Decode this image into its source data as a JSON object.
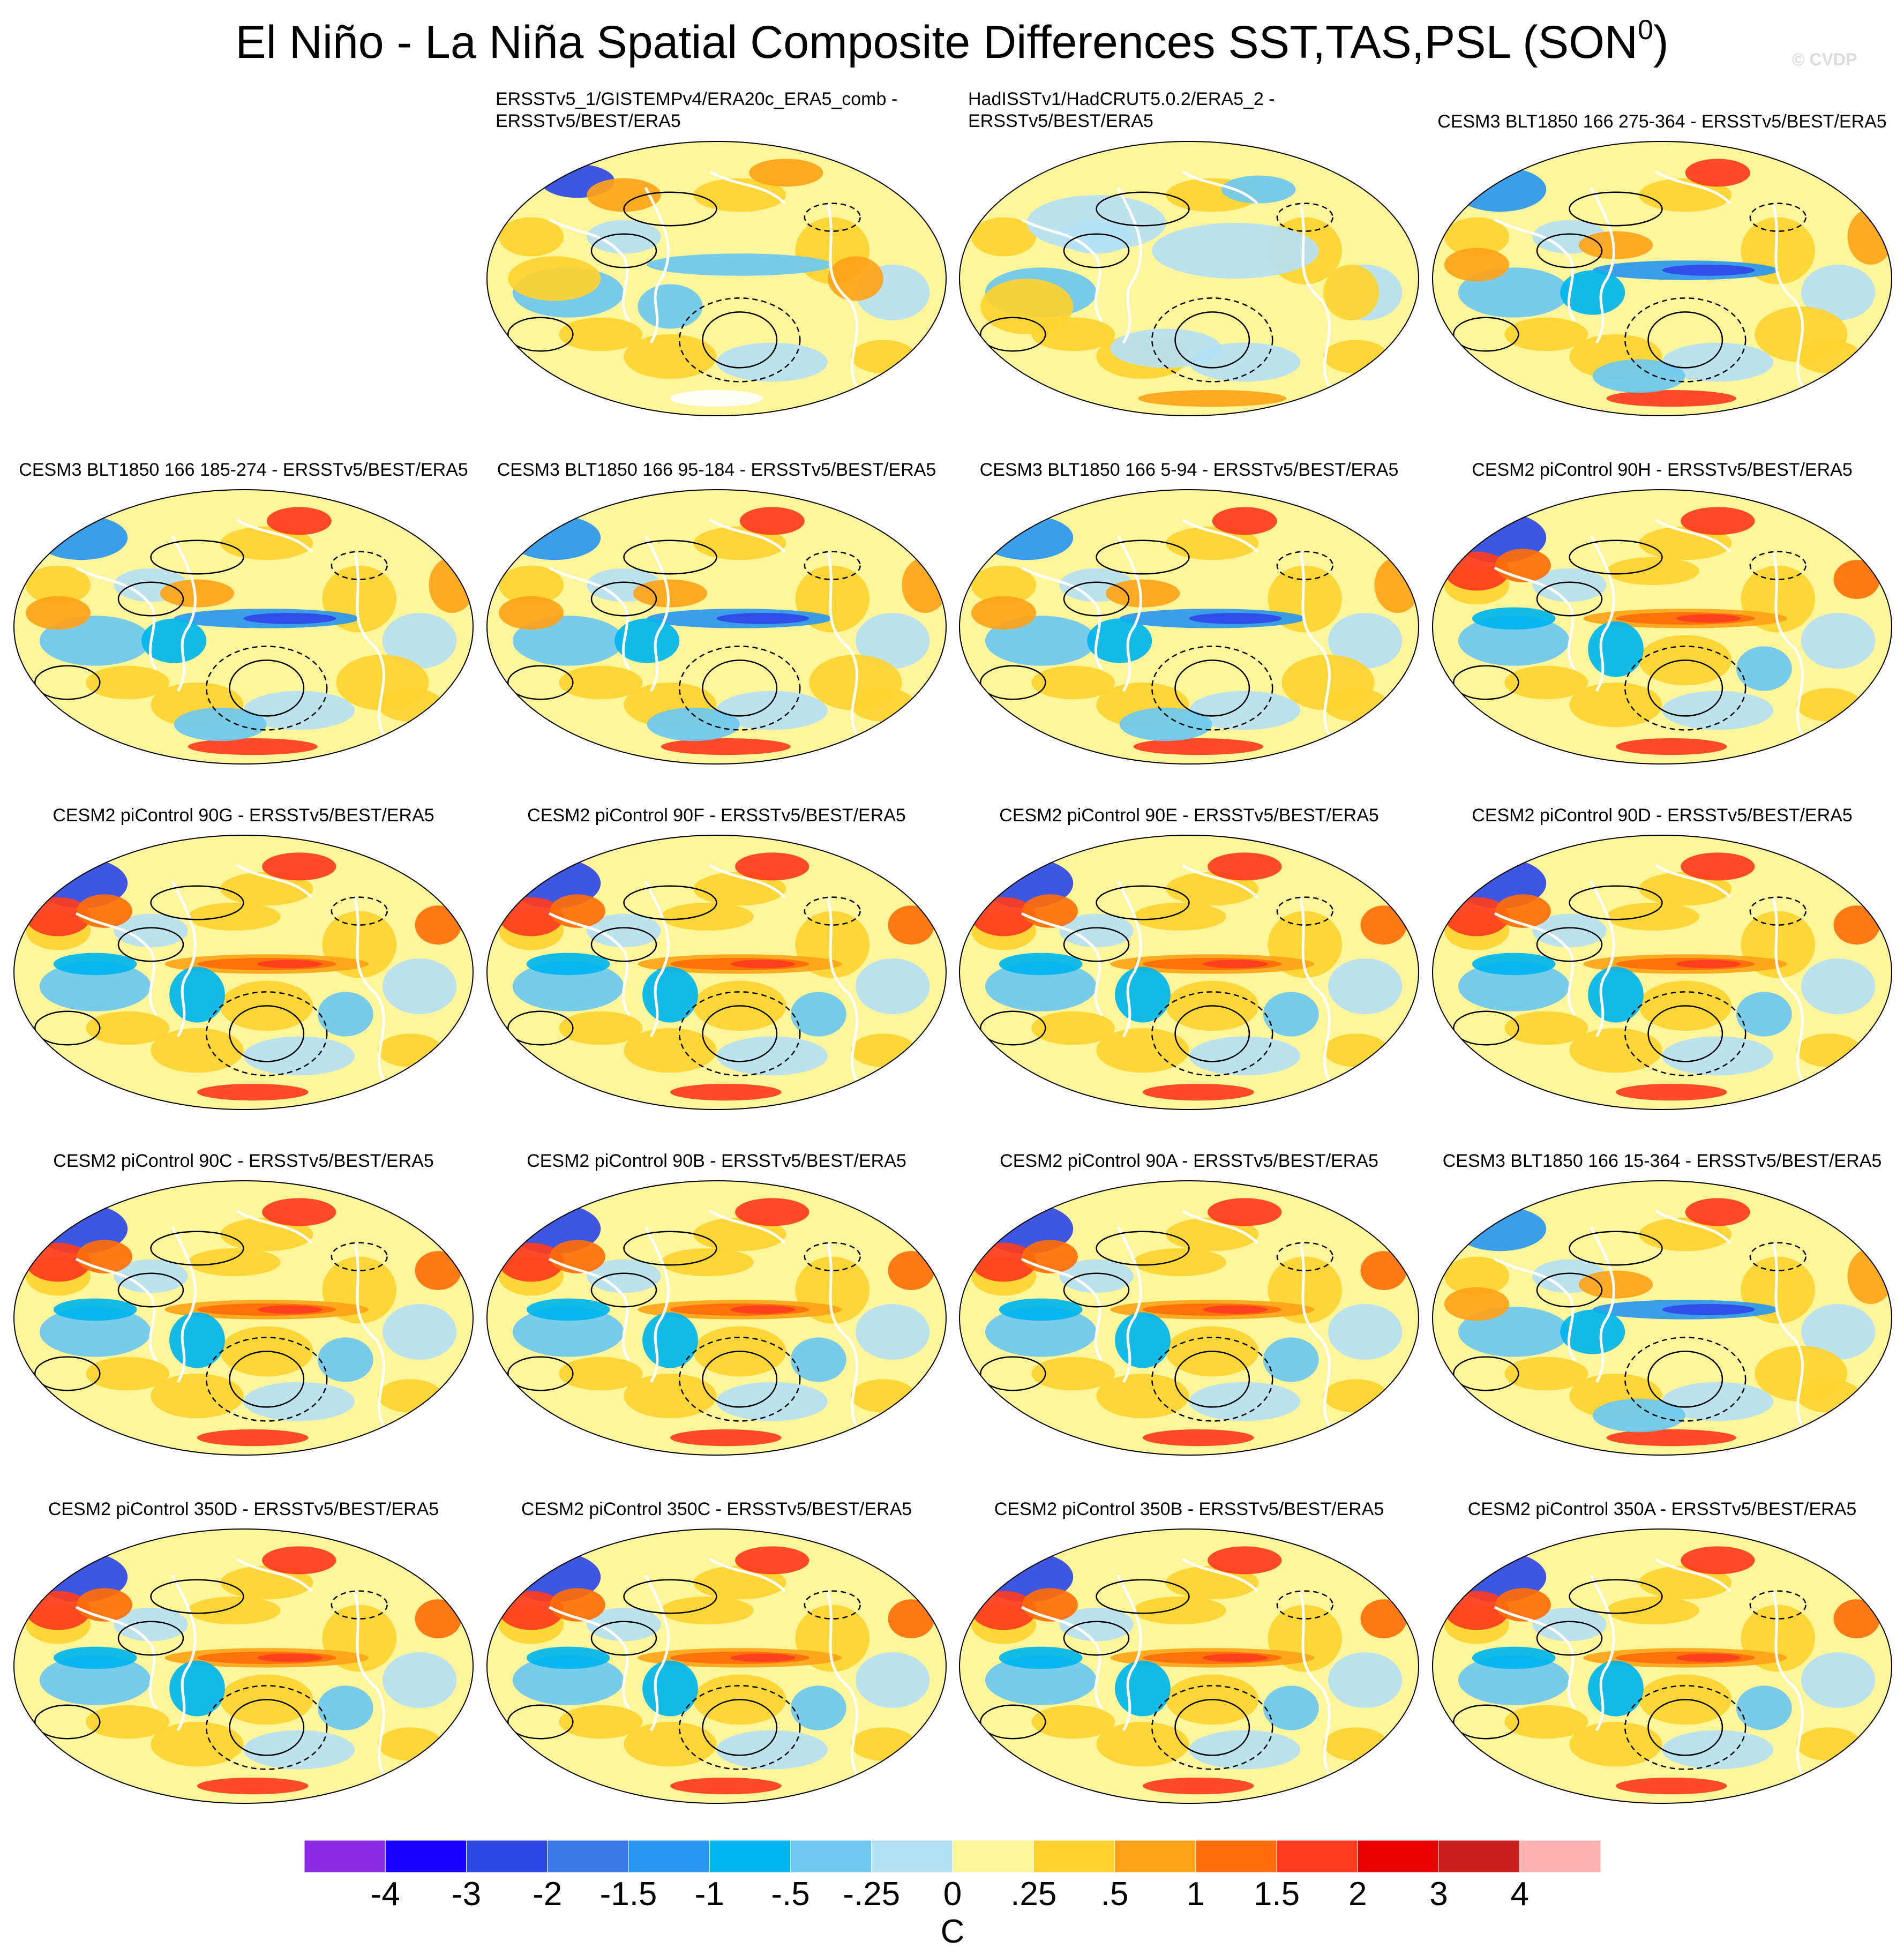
{
  "title": {
    "main": "El Niño - La Niña Spatial Composite Differences SST,TAS,PSL (SON",
    "superscript": "0",
    "close": ")"
  },
  "watermark": "© CVDP",
  "panels": [
    {
      "line1": "ERSSTv5_1/GISTEMPv4/ERA20c_ERA5_comb -",
      "line2": "ERSSTv5/BEST/ERA5",
      "style": "obs1"
    },
    {
      "line1": "HadISSTv1/HadCRUT5.0.2/ERA5_2 -",
      "line2": "ERSSTv5/BEST/ERA5",
      "style": "obs2"
    },
    {
      "line1": "CESM3 BLT1850 166 275-364 - ERSSTv5/BEST/ERA5",
      "line2": "",
      "style": "cesm3"
    },
    {
      "line1": "CESM3 BLT1850 166 185-274 - ERSSTv5/BEST/ERA5",
      "line2": "",
      "style": "cesm3"
    },
    {
      "line1": "CESM3 BLT1850 166 95-184 - ERSSTv5/BEST/ERA5",
      "line2": "",
      "style": "cesm3"
    },
    {
      "line1": "CESM3 BLT1850 166 5-94 - ERSSTv5/BEST/ERA5",
      "line2": "",
      "style": "cesm3"
    },
    {
      "line1": "CESM2 piControl 90H - ERSSTv5/BEST/ERA5",
      "line2": "",
      "style": "cesm2"
    },
    {
      "line1": "CESM2 piControl 90G - ERSSTv5/BEST/ERA5",
      "line2": "",
      "style": "cesm2"
    },
    {
      "line1": "CESM2 piControl 90F - ERSSTv5/BEST/ERA5",
      "line2": "",
      "style": "cesm2"
    },
    {
      "line1": "CESM2 piControl 90E - ERSSTv5/BEST/ERA5",
      "line2": "",
      "style": "cesm2"
    },
    {
      "line1": "CESM2 piControl 90D - ERSSTv5/BEST/ERA5",
      "line2": "",
      "style": "cesm2"
    },
    {
      "line1": "CESM2 piControl 90C - ERSSTv5/BEST/ERA5",
      "line2": "",
      "style": "cesm2"
    },
    {
      "line1": "CESM2 piControl 90B - ERSSTv5/BEST/ERA5",
      "line2": "",
      "style": "cesm2"
    },
    {
      "line1": "CESM2 piControl 90A - ERSSTv5/BEST/ERA5",
      "line2": "",
      "style": "cesm2"
    },
    {
      "line1": "CESM3 BLT1850 166 15-364 - ERSSTv5/BEST/ERA5",
      "line2": "",
      "style": "cesm3"
    },
    {
      "line1": "CESM2 piControl 350D - ERSSTv5/BEST/ERA5",
      "line2": "",
      "style": "cesm2"
    },
    {
      "line1": "CESM2 piControl 350C - ERSSTv5/BEST/ERA5",
      "line2": "",
      "style": "cesm2"
    },
    {
      "line1": "CESM2 piControl 350B - ERSSTv5/BEST/ERA5",
      "line2": "",
      "style": "cesm2"
    },
    {
      "line1": "CESM2 piControl 350A - ERSSTv5/BEST/ERA5",
      "line2": "",
      "style": "cesm2"
    }
  ],
  "colorbar": {
    "colors": [
      "#8a2be2",
      "#1a00ff",
      "#2e48e6",
      "#3a78e8",
      "#2a96f0",
      "#00b5ee",
      "#6ec8f0",
      "#b6e1f4",
      "#fff59a",
      "#ffd230",
      "#ffa319",
      "#ff6e0a",
      "#ff3c1e",
      "#e60000",
      "#c81e1e",
      "#ffb2b2"
    ],
    "tick_labels": [
      "-4",
      "-3",
      "-2",
      "-1.5",
      "-1",
      "-.5",
      "-.25",
      "0",
      ".25",
      ".5",
      "1",
      "1.5",
      "2",
      "3",
      "4"
    ],
    "units": "C"
  }
}
